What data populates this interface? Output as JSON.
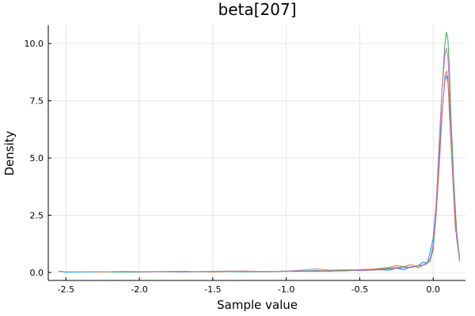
{
  "chart_data": {
    "type": "line",
    "title": "beta[207]",
    "xlabel": "Sample value",
    "ylabel": "Density",
    "xlim": [
      -2.62,
      0.22
    ],
    "ylim": [
      -0.35,
      10.8
    ],
    "xticks": [
      -2.5,
      -2.0,
      -1.5,
      -1.0,
      -0.5,
      0.0
    ],
    "xtick_labels": [
      "-2.5",
      "-2.0",
      "-1.5",
      "-1.0",
      "-0.5",
      "0.0"
    ],
    "yticks": [
      0,
      2.5,
      5.0,
      7.5,
      10.0
    ],
    "ytick_labels": [
      "0.0",
      "2.5",
      "5.0",
      "7.5",
      "10.0"
    ],
    "grid": true,
    "legend": "none",
    "series": [
      {
        "color": "#009AFA",
        "x": [
          -2.55,
          -2.5,
          -2.3,
          -2.1,
          -1.9,
          -1.7,
          -1.5,
          -1.3,
          -1.1,
          -0.9,
          -0.8,
          -0.7,
          -0.6,
          -0.5,
          -0.4,
          -0.3,
          -0.25,
          -0.2,
          -0.15,
          -0.1,
          -0.07,
          -0.04,
          -0.02,
          0.0,
          0.02,
          0.04,
          0.06,
          0.08,
          0.09,
          0.1,
          0.11,
          0.12,
          0.14,
          0.16,
          0.18
        ],
        "y": [
          0.05,
          0.02,
          0.03,
          0.02,
          0.04,
          0.02,
          0.05,
          0.03,
          0.04,
          0.06,
          0.08,
          0.05,
          0.1,
          0.08,
          0.12,
          0.1,
          0.18,
          0.12,
          0.25,
          0.3,
          0.45,
          0.4,
          0.9,
          1.5,
          3.0,
          5.0,
          7.0,
          8.4,
          8.6,
          8.3,
          7.5,
          6.0,
          3.5,
          1.5,
          0.5
        ]
      },
      {
        "color": "#E36F47",
        "x": [
          -2.3,
          -2.1,
          -1.9,
          -1.7,
          -1.5,
          -1.3,
          -1.1,
          -0.9,
          -0.7,
          -0.5,
          -0.4,
          -0.3,
          -0.25,
          -0.2,
          -0.15,
          -0.1,
          -0.05,
          -0.02,
          0.0,
          0.02,
          0.04,
          0.06,
          0.08,
          0.09,
          0.1,
          0.11,
          0.13,
          0.15,
          0.18
        ],
        "y": [
          0.02,
          0.04,
          0.03,
          0.05,
          0.02,
          0.06,
          0.04,
          0.05,
          0.08,
          0.12,
          0.15,
          0.22,
          0.3,
          0.25,
          0.35,
          0.2,
          0.4,
          0.6,
          1.0,
          2.5,
          4.5,
          6.8,
          8.6,
          8.8,
          8.5,
          7.0,
          4.5,
          2.0,
          0.55
        ]
      },
      {
        "color": "#3EA44E",
        "x": [
          -2.2,
          -2.0,
          -1.8,
          -1.6,
          -1.4,
          -1.2,
          -1.0,
          -0.8,
          -0.6,
          -0.5,
          -0.4,
          -0.3,
          -0.2,
          -0.15,
          -0.1,
          -0.05,
          -0.02,
          0.0,
          0.02,
          0.04,
          0.06,
          0.08,
          0.09,
          0.1,
          0.11,
          0.12,
          0.14,
          0.16,
          0.18
        ],
        "y": [
          0.03,
          0.02,
          0.04,
          0.03,
          0.05,
          0.03,
          0.06,
          0.05,
          0.07,
          0.1,
          0.12,
          0.18,
          0.25,
          0.22,
          0.28,
          0.35,
          0.5,
          1.0,
          2.8,
          5.5,
          8.0,
          10.0,
          10.5,
          10.2,
          9.0,
          7.0,
          4.0,
          1.8,
          0.6
        ]
      },
      {
        "color": "#C271D2",
        "x": [
          -2.0,
          -1.8,
          -1.6,
          -1.4,
          -1.2,
          -1.0,
          -0.8,
          -0.7,
          -0.6,
          -0.5,
          -0.4,
          -0.3,
          -0.2,
          -0.15,
          -0.1,
          -0.05,
          -0.02,
          0.0,
          0.02,
          0.04,
          0.06,
          0.08,
          0.09,
          0.1,
          0.11,
          0.12,
          0.14,
          0.16,
          0.18
        ],
        "y": [
          0.02,
          0.04,
          0.03,
          0.06,
          0.04,
          0.05,
          0.15,
          0.1,
          0.12,
          0.08,
          0.1,
          0.15,
          0.2,
          0.25,
          0.3,
          0.35,
          0.6,
          1.2,
          3.0,
          5.5,
          8.0,
          9.5,
          9.8,
          9.4,
          8.2,
          6.0,
          3.5,
          1.5,
          0.5
        ]
      }
    ]
  }
}
